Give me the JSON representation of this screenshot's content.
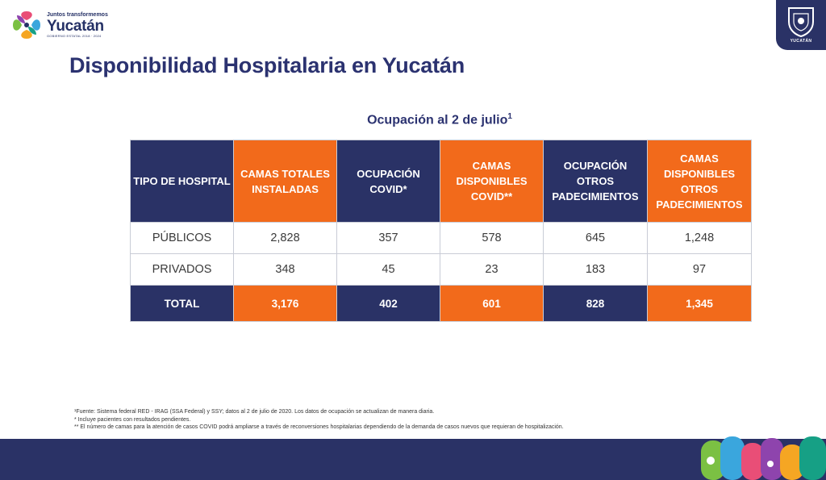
{
  "logo": {
    "tagline": "Juntos transformemos",
    "name": "Yucatán",
    "government": "GOBIERNO ESTATAL 2018 · 2024"
  },
  "shield": {
    "label": "YUCATÁN"
  },
  "title": "Disponibilidad Hospitalaria en Yucatán",
  "subtitle": {
    "text": "Ocupación al 2 de julio",
    "note": "1"
  },
  "table": {
    "headers": [
      {
        "label": "TIPO DE HOSPITAL",
        "color": "#2a3266"
      },
      {
        "label": "CAMAS TOTALES INSTALADAS",
        "color": "#f26a1b"
      },
      {
        "label": "OCUPACIÓN COVID*",
        "color": "#2a3266"
      },
      {
        "label": "CAMAS DISPONIBLES COVID**",
        "color": "#f26a1b"
      },
      {
        "label": "OCUPACIÓN OTROS PADECIMIENTOS",
        "color": "#2a3266"
      },
      {
        "label": "CAMAS DISPONIBLES OTROS PADECIMIENTOS",
        "color": "#f26a1b"
      }
    ],
    "rows": [
      [
        "PÚBLICOS",
        "2,828",
        "357",
        "578",
        "645",
        "1,248"
      ],
      [
        "PRIVADOS",
        "348",
        "45",
        "23",
        "183",
        "97"
      ]
    ],
    "total": [
      "TOTAL",
      "3,176",
      "402",
      "601",
      "828",
      "1,345"
    ]
  },
  "footnotes": [
    "¹Fuente: Sistema federal RED - IRAG (SSA Federal) y SSY; datos al 2 de julio de 2020. Los datos de ocupación se actualizan de manera diaria.",
    "* Incluye pacientes con resultados pendientes.",
    "** El número de camas para la atención de casos COVID podrá ampliarse a través de reconversiones hospitalarias dependiendo de la demanda de casos nuevos que requieran de hospitalización."
  ],
  "colors": {
    "navy": "#2a3266",
    "orange": "#f26a1b"
  }
}
